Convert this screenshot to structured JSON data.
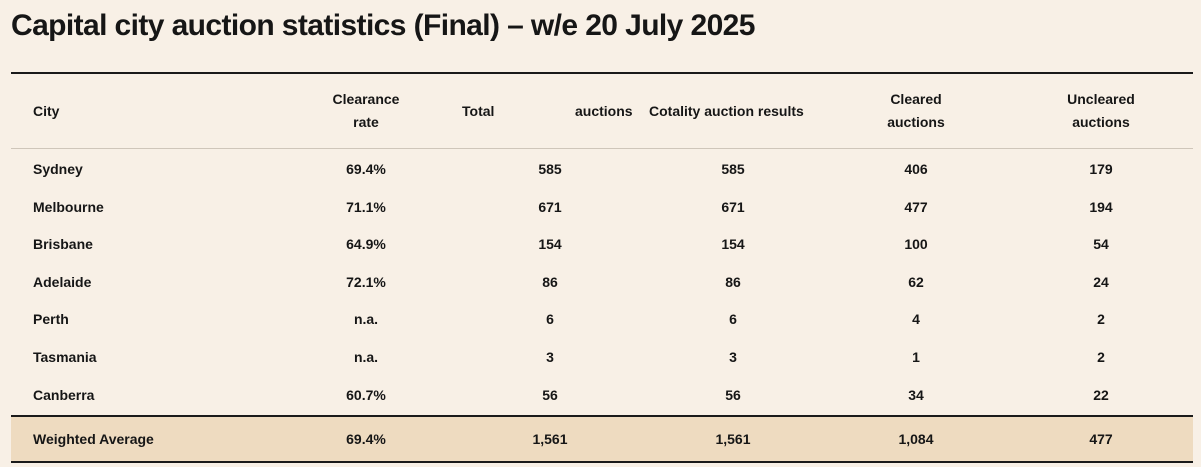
{
  "title": "Capital city auction statistics (Final) – w/e 20 July 2025",
  "headers": {
    "city": "City",
    "clearance_line1": "Clearance",
    "clearance_line2": "rate",
    "total": "Total",
    "auctions": "auctions",
    "cotality": "Cotality auction results",
    "cleared_line1": "Cleared",
    "cleared_line2": "auctions",
    "uncleared_line1": "Uncleared",
    "uncleared_line2": "auctions"
  },
  "rows": [
    {
      "city": "Sydney",
      "rate": "69.4%",
      "total": "585",
      "cotality": "585",
      "cleared": "406",
      "uncleared": "179"
    },
    {
      "city": "Melbourne",
      "rate": "71.1%",
      "total": "671",
      "cotality": "671",
      "cleared": "477",
      "uncleared": "194"
    },
    {
      "city": "Brisbane",
      "rate": "64.9%",
      "total": "154",
      "cotality": "154",
      "cleared": "100",
      "uncleared": "54"
    },
    {
      "city": "Adelaide",
      "rate": "72.1%",
      "total": "86",
      "cotality": "86",
      "cleared": "62",
      "uncleared": "24"
    },
    {
      "city": "Perth",
      "rate": "n.a.",
      "total": "6",
      "cotality": "6",
      "cleared": "4",
      "uncleared": "2"
    },
    {
      "city": "Tasmania",
      "rate": "n.a.",
      "total": "3",
      "cotality": "3",
      "cleared": "1",
      "uncleared": "2"
    },
    {
      "city": "Canberra",
      "rate": "60.7%",
      "total": "56",
      "cotality": "56",
      "cleared": "34",
      "uncleared": "22"
    }
  ],
  "average": {
    "city": "Weighted Average",
    "rate": "69.4%",
    "total": "1,561",
    "cotality": "1,561",
    "cleared": "1,084",
    "uncleared": "477"
  }
}
